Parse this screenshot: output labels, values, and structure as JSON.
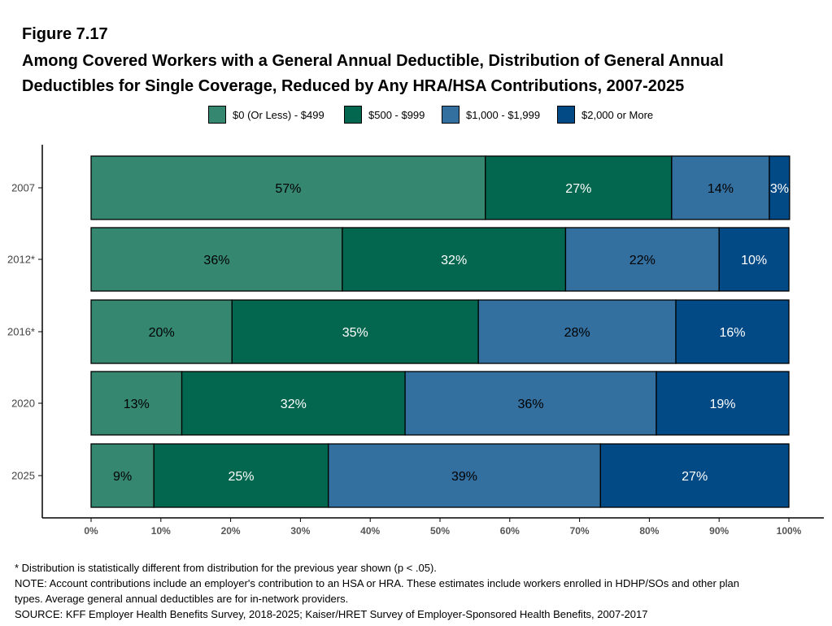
{
  "figure_label": "Figure 7.17",
  "title_line1": "Among Covered Workers with a General Annual Deductible, Distribution of General Annual",
  "title_line2": "Deductibles for Single Coverage, Reduced by Any HRA/HSA Contributions, 2007-2025",
  "chart_data": {
    "type": "bar",
    "orientation": "horizontal",
    "stacked": true,
    "categories": [
      "2007",
      "2012*",
      "2016*",
      "2020",
      "2025"
    ],
    "series": [
      {
        "name": "$0 (Or Less) - $499",
        "color": "#35876f",
        "label_color": "#000000",
        "values": [
          56.5,
          36,
          20.2,
          13,
          9
        ],
        "labels": [
          "57%",
          "36%",
          "20%",
          "13%",
          "9%"
        ]
      },
      {
        "name": "$500 - $999",
        "color": "#02674e",
        "label_color": "#ffffff",
        "values": [
          26.7,
          32,
          35.3,
          32,
          25
        ],
        "labels": [
          "27%",
          "32%",
          "35%",
          "32%",
          "25%"
        ]
      },
      {
        "name": "$1,000 - $1,999",
        "color": "#336f9f",
        "label_color": "#000000",
        "values": [
          14,
          22,
          28.3,
          36,
          39
        ],
        "labels": [
          "14%",
          "22%",
          "28%",
          "36%",
          "39%"
        ]
      },
      {
        "name": "$2,000 or More",
        "color": "#024a86",
        "label_color": "#ffffff",
        "values": [
          2.9,
          10,
          16.2,
          19,
          27
        ],
        "labels": [
          "3%",
          "10%",
          "16%",
          "19%",
          "27%"
        ]
      }
    ],
    "xlim": [
      0,
      100
    ],
    "xticks": [
      "0%",
      "10%",
      "20%",
      "30%",
      "40%",
      "50%",
      "60%",
      "70%",
      "80%",
      "90%",
      "100%"
    ],
    "legend_position": "top",
    "grid": false
  },
  "notes": {
    "line1": "* Distribution is statistically different from distribution for the previous year shown (p < .05).",
    "line2": "NOTE: Account contributions include an employer's contribution to an HSA or HRA. These estimates include workers enrolled in HDHP/SOs and other plan",
    "line3": "types. Average general annual deductibles are for in-network providers.",
    "line4": "SOURCE: KFF Employer Health Benefits Survey, 2018-2025; Kaiser/HRET Survey of Employer-Sponsored Health Benefits, 2007-2017"
  }
}
